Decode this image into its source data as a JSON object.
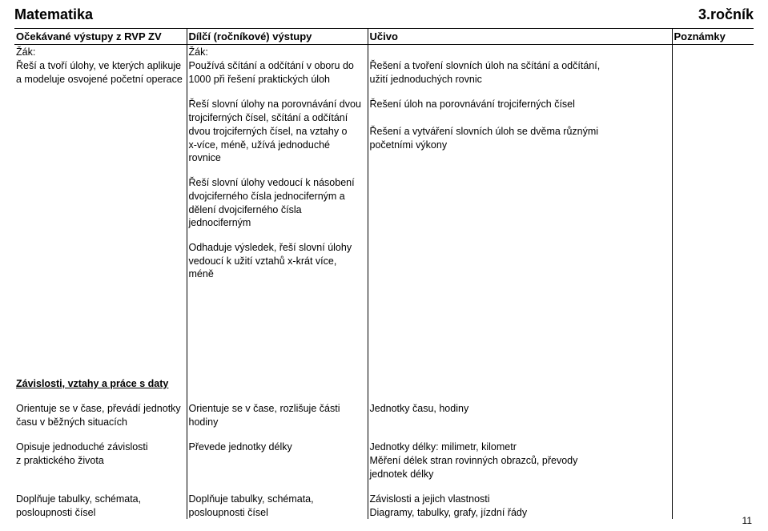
{
  "title_left": "Matematika",
  "title_right": "3.ročník",
  "headers": {
    "col1": "Očekávané výstupy z RVP ZV",
    "col2": "Dílčí (ročníkové) výstupy",
    "col3": "Učivo",
    "col4": "Poznámky"
  },
  "zak": "Žák:",
  "block1": {
    "c1a": "Řeší a tvoří úlohy, ve kterých aplikuje",
    "c1b": "a modeluje osvojené početní operace",
    "c2a": "Používá sčítání a odčítání v oboru do",
    "c2b": "1000 při řešení praktických úloh",
    "c3a": "Řešení a tvoření slovních úloh na sčítání a odčítání,",
    "c3b": "užití jednoduchých rovnic"
  },
  "block2": {
    "c2a": "Řeší slovní úlohy na porovnávání dvou",
    "c2b": "trojciferných čísel, sčítání a odčítání",
    "c2c": "dvou trojciferných čísel, na vztahy o",
    "c2d": "x-více, méně, užívá jednoduché rovnice",
    "c3a": "Řešení úloh na porovnávání trojciferných čísel",
    "c3c": "Řešení a vytváření slovních úloh se dvěma různými",
    "c3d": "početními výkony"
  },
  "block3": {
    "c2a": "Řeší slovní úlohy vedoucí k násobení",
    "c2b": "dvojciferného čísla jednociferným a",
    "c2c": "dělení dvojciferného čísla jednociferným"
  },
  "block4": {
    "c2a": "Odhaduje výsledek, řeší slovní úlohy",
    "c2b": "vedoucí k užití vztahů x-krát více, méně"
  },
  "section2_title": "Závislosti, vztahy a práce s daty",
  "block5": {
    "c1a": "Orientuje se v čase, převádí jednotky",
    "c1b": "času v běžných situacích",
    "c2a": "Orientuje se v čase, rozlišuje části",
    "c2b": "hodiny",
    "c3a": "Jednotky času, hodiny"
  },
  "block6": {
    "c1a": "Opisuje jednoduché závislosti",
    "c1b": "z praktického života",
    "c2a": "Převede jednotky délky",
    "c3a": "Jednotky délky: milimetr, kilometr",
    "c3b": "Měření délek stran rovinných obrazců, převody",
    "c3c": "jednotek délky"
  },
  "block7": {
    "c1a": "Doplňuje tabulky, schémata,",
    "c1b": "posloupnosti čísel",
    "c2a": "Doplňuje tabulky, schémata,",
    "c2b": "posloupnosti čísel",
    "c3a": "Závislosti a jejich vlastnosti",
    "c3b": "Diagramy, tabulky, grafy, jízdní řády"
  },
  "page_number": "11"
}
